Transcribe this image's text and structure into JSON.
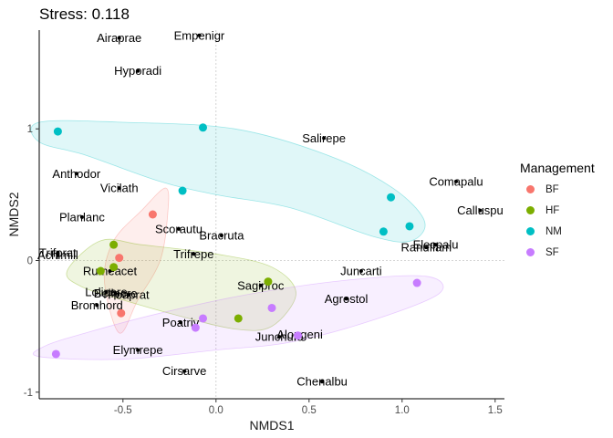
{
  "chart_data": {
    "type": "scatter",
    "title": "Stress: 0.118",
    "xlabel": "NMDS1",
    "ylabel": "NMDS2",
    "xlim": [
      -0.95,
      1.55
    ],
    "ylim": [
      -1.05,
      1.75
    ],
    "x_ticks": [
      -0.5,
      0.0,
      0.5,
      1.0,
      1.5
    ],
    "x_tick_labels": [
      "-0.5",
      "0.0",
      "0.5",
      "1.0",
      "1.5"
    ],
    "y_ticks": [
      -1,
      0,
      1
    ],
    "y_tick_labels": [
      "-1",
      "0",
      "1"
    ],
    "reference_lines": {
      "x": 0,
      "y": 0
    },
    "legend": {
      "title": "Management",
      "position": "right",
      "entries": [
        {
          "name": "BF",
          "color": "#F8766D"
        },
        {
          "name": "HF",
          "color": "#7CAE00"
        },
        {
          "name": "NM",
          "color": "#00BFC4"
        },
        {
          "name": "SF",
          "color": "#C77CFF"
        }
      ]
    },
    "groups": [
      {
        "name": "BF",
        "color": "#F8766D",
        "sites": [
          [
            -0.34,
            0.35
          ],
          [
            -0.52,
            0.02
          ],
          [
            -0.51,
            -0.4
          ]
        ],
        "hull": [
          [
            -0.52,
            -0.55
          ],
          [
            -0.6,
            -0.15
          ],
          [
            -0.55,
            0.15
          ],
          [
            -0.4,
            0.38
          ],
          [
            -0.27,
            0.55
          ],
          [
            -0.26,
            0.35
          ],
          [
            -0.3,
            0.0
          ],
          [
            -0.42,
            -0.3
          ]
        ]
      },
      {
        "name": "HF",
        "color": "#7CAE00",
        "sites": [
          [
            -0.55,
            0.12
          ],
          [
            -0.62,
            -0.08
          ],
          [
            -0.55,
            -0.05
          ],
          [
            0.28,
            -0.16
          ],
          [
            0.12,
            -0.44
          ]
        ],
        "hull": [
          [
            -0.8,
            -0.08
          ],
          [
            -0.62,
            0.15
          ],
          [
            -0.4,
            0.12
          ],
          [
            0.0,
            0.05
          ],
          [
            0.3,
            -0.05
          ],
          [
            0.43,
            -0.25
          ],
          [
            0.3,
            -0.5
          ],
          [
            0.1,
            -0.52
          ],
          [
            -0.2,
            -0.42
          ],
          [
            -0.5,
            -0.3
          ],
          [
            -0.72,
            -0.2
          ]
        ]
      },
      {
        "name": "NM",
        "color": "#00BFC4",
        "sites": [
          [
            -0.85,
            0.98
          ],
          [
            -0.07,
            1.01
          ],
          [
            -0.18,
            0.53
          ],
          [
            0.94,
            0.48
          ],
          [
            0.9,
            0.22
          ],
          [
            1.04,
            0.26
          ]
        ],
        "hull": [
          [
            -0.95,
            1.05
          ],
          [
            -0.5,
            1.05
          ],
          [
            0.1,
            1.0
          ],
          [
            0.6,
            0.8
          ],
          [
            0.95,
            0.55
          ],
          [
            1.12,
            0.3
          ],
          [
            1.05,
            0.15
          ],
          [
            0.85,
            0.18
          ],
          [
            0.4,
            0.4
          ],
          [
            0.0,
            0.5
          ],
          [
            -0.3,
            0.6
          ],
          [
            -0.7,
            0.8
          ],
          [
            -0.95,
            0.9
          ]
        ]
      },
      {
        "name": "SF",
        "color": "#C77CFF",
        "sites": [
          [
            -0.07,
            -0.44
          ],
          [
            -0.11,
            -0.51
          ],
          [
            0.3,
            -0.36
          ],
          [
            0.44,
            -0.57
          ],
          [
            1.08,
            -0.17
          ],
          [
            -0.86,
            -0.71
          ]
        ],
        "hull": [
          [
            -0.95,
            -0.73
          ],
          [
            -0.5,
            -0.75
          ],
          [
            0.0,
            -0.68
          ],
          [
            0.4,
            -0.62
          ],
          [
            0.85,
            -0.45
          ],
          [
            1.2,
            -0.25
          ],
          [
            1.13,
            -0.12
          ],
          [
            0.7,
            -0.15
          ],
          [
            0.2,
            -0.25
          ],
          [
            -0.3,
            -0.4
          ],
          [
            -0.7,
            -0.55
          ],
          [
            -0.92,
            -0.65
          ]
        ]
      }
    ],
    "species": [
      {
        "label": "Airaprae",
        "x": -0.52,
        "y": 1.69
      },
      {
        "label": "Empenigr",
        "x": -0.09,
        "y": 1.71
      },
      {
        "label": "Hyporadi",
        "x": -0.42,
        "y": 1.44
      },
      {
        "label": "Salirepe",
        "x": 0.58,
        "y": 0.93
      },
      {
        "label": "Anthodor",
        "x": -0.75,
        "y": 0.66
      },
      {
        "label": "Vicilath",
        "x": -0.52,
        "y": 0.55
      },
      {
        "label": "Comapalu",
        "x": 1.29,
        "y": 0.6
      },
      {
        "label": "Calluspu",
        "x": 1.42,
        "y": 0.38
      },
      {
        "label": "Planlanc",
        "x": -0.72,
        "y": 0.33
      },
      {
        "label": "Scorautu",
        "x": -0.2,
        "y": 0.24
      },
      {
        "label": "Bracruta",
        "x": 0.03,
        "y": 0.19
      },
      {
        "label": "Elecpalu",
        "x": 1.18,
        "y": 0.12
      },
      {
        "label": "Ranuflam",
        "x": 1.13,
        "y": 0.1
      },
      {
        "label": "Trifprat",
        "x": -0.85,
        "y": 0.06
      },
      {
        "label": "Achimill",
        "x": -0.85,
        "y": 0.04
      },
      {
        "label": "Trifrepe",
        "x": -0.12,
        "y": 0.05
      },
      {
        "label": "Rumeacet",
        "x": -0.57,
        "y": -0.08
      },
      {
        "label": "Juncarti",
        "x": 0.78,
        "y": -0.08
      },
      {
        "label": "Sagiproc",
        "x": 0.24,
        "y": -0.19
      },
      {
        "label": "Lolipere",
        "x": -0.59,
        "y": -0.24
      },
      {
        "label": "Bellpere",
        "x": -0.54,
        "y": -0.25
      },
      {
        "label": "Poaprat",
        "x": -0.47,
        "y": -0.26
      },
      {
        "label": "Agrostol",
        "x": 0.7,
        "y": -0.29
      },
      {
        "label": "Bromhord",
        "x": -0.64,
        "y": -0.34
      },
      {
        "label": "Poatriv",
        "x": -0.19,
        "y": -0.47
      },
      {
        "label": "Junchufo",
        "x": 0.34,
        "y": -0.58
      },
      {
        "label": "Alopgeni",
        "x": 0.45,
        "y": -0.56
      },
      {
        "label": "Elymrepe",
        "x": -0.42,
        "y": -0.68
      },
      {
        "label": "Cirsarve",
        "x": -0.17,
        "y": -0.84
      },
      {
        "label": "Chenalbu",
        "x": 0.57,
        "y": -0.92
      }
    ]
  }
}
